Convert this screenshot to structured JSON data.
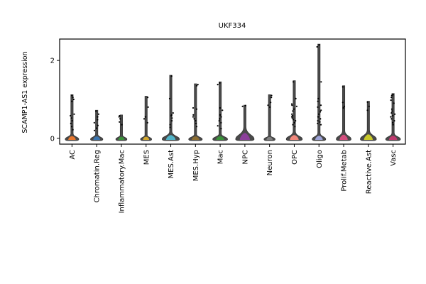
{
  "chart_data": {
    "type": "violin",
    "title": "UKF334",
    "ylabel": "SCAMP1-AS1 expression",
    "xlabel": "",
    "ylim": [
      -0.15,
      2.55
    ],
    "yticks": [
      0,
      2
    ],
    "grid": false,
    "legend": "none",
    "categories": [
      "AC",
      "Chromatin.Reg",
      "Inflammatory.Mac",
      "MES",
      "MES.Ast",
      "MES.Hyp",
      "Mac",
      "NPC",
      "Neuron",
      "OPC",
      "Oligo",
      "Prolif.Metab",
      "Reactive.Ast",
      "Vasc"
    ],
    "series": [
      {
        "category": "AC",
        "color": "#e8772e",
        "max": 1.12,
        "body_height": 0.12,
        "body_width": 0.55,
        "points": [
          1.1,
          1.05,
          1.0,
          0.95,
          0.62,
          0.58,
          0.52,
          0.45,
          0.38,
          0.3,
          0.22
        ]
      },
      {
        "category": "Chromatin.Reg",
        "color": "#3b75af",
        "max": 0.72,
        "body_height": 0.1,
        "body_width": 0.5,
        "points": [
          0.7,
          0.62,
          0.55,
          0.48,
          0.4,
          0.33,
          0.26,
          0.2
        ]
      },
      {
        "category": "Inflammatory.Mac",
        "color": "#3a923a",
        "max": 0.6,
        "body_height": 0.08,
        "body_width": 0.45,
        "points": [
          0.58,
          0.55,
          0.5,
          0.42,
          0.35
        ]
      },
      {
        "category": "MES",
        "color": "#d2a72c",
        "max": 1.08,
        "body_height": 0.08,
        "body_width": 0.45,
        "points": [
          1.05,
          0.8,
          0.55,
          0.5,
          0.4
        ]
      },
      {
        "category": "MES.Ast",
        "color": "#51b4c8",
        "max": 1.62,
        "body_height": 0.18,
        "body_width": 0.7,
        "points": [
          1.6,
          1.02,
          0.65,
          0.6,
          0.58,
          0.52,
          0.45,
          0.35,
          0.28
        ]
      },
      {
        "category": "MES.Hyp",
        "color": "#8c6d31",
        "max": 1.4,
        "body_height": 0.1,
        "body_width": 0.55,
        "points": [
          1.38,
          1.35,
          0.78,
          0.75,
          0.6,
          0.55,
          0.5,
          0.45,
          0.38,
          0.3
        ]
      },
      {
        "category": "Mac",
        "color": "#3a923a",
        "max": 1.45,
        "body_height": 0.12,
        "body_width": 0.6,
        "points": [
          1.42,
          1.38,
          0.78,
          0.72,
          0.6,
          0.55,
          0.5,
          0.45,
          0.4,
          0.32,
          0.25
        ]
      },
      {
        "category": "NPC",
        "color": "#8b3f9a",
        "max": 0.85,
        "body_height": 0.3,
        "body_width": 0.75,
        "points": [
          0.84,
          0.82
        ]
      },
      {
        "category": "Neuron",
        "color": "#7f7f7f",
        "max": 1.12,
        "body_height": 0.07,
        "body_width": 0.45,
        "points": [
          1.1,
          1.05,
          0.92,
          0.85,
          0.8
        ]
      },
      {
        "category": "OPC",
        "color": "#f2887c",
        "max": 1.48,
        "body_height": 0.18,
        "body_width": 0.65,
        "points": [
          1.45,
          1.02,
          0.88,
          0.85,
          0.82,
          0.75,
          0.7,
          0.62,
          0.58,
          0.55,
          0.52,
          0.48,
          0.45,
          0.4,
          0.35,
          0.3
        ]
      },
      {
        "category": "Oligo",
        "color": "#9da3d8",
        "max": 2.42,
        "body_height": 0.14,
        "body_width": 0.55,
        "points": [
          2.4,
          2.35,
          1.45,
          1.02,
          0.95,
          0.85,
          0.8,
          0.72,
          0.68,
          0.62,
          0.55,
          0.5,
          0.45,
          0.42,
          0.38,
          0.35
        ]
      },
      {
        "category": "Prolif.Metab",
        "color": "#d44e7e",
        "max": 1.35,
        "body_height": 0.2,
        "body_width": 0.6,
        "points": [
          1.32,
          0.92,
          0.82,
          0.78
        ]
      },
      {
        "category": "Reactive.Ast",
        "color": "#c9c92a",
        "max": 0.95,
        "body_height": 0.22,
        "body_width": 0.65,
        "points": [
          0.93,
          0.82,
          0.72
        ]
      },
      {
        "category": "Vasc",
        "color": "#c0396e",
        "max": 1.15,
        "body_height": 0.14,
        "body_width": 0.6,
        "points": [
          1.12,
          1.1,
          1.05,
          0.98,
          0.9,
          0.75,
          0.7,
          0.65,
          0.62,
          0.58,
          0.55,
          0.5,
          0.45,
          0.4,
          0.35
        ]
      }
    ]
  }
}
